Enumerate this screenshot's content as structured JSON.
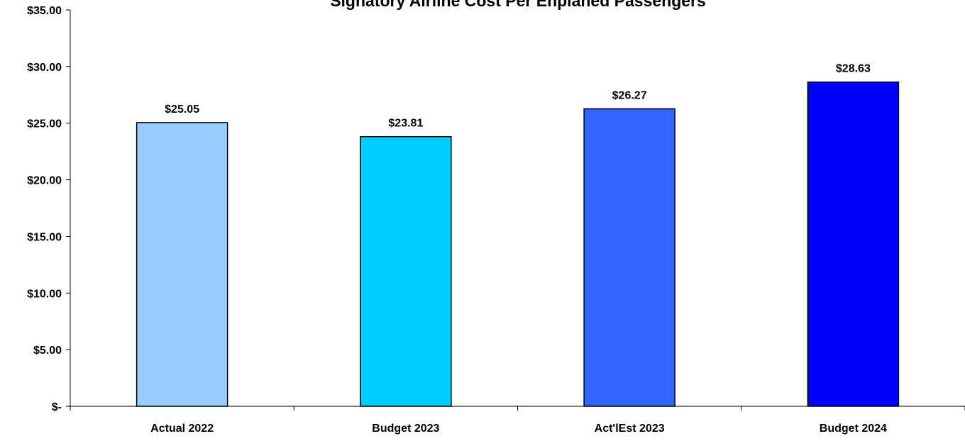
{
  "chart_data": {
    "type": "bar",
    "title": "Signatory Airline Cost Per Enplaned Passengers",
    "xlabel": "",
    "ylabel": "",
    "categories": [
      "Actual 2022",
      "Budget 2023",
      "Act'lEst 2023",
      "Budget 2024"
    ],
    "values": [
      25.05,
      23.81,
      26.27,
      28.63
    ],
    "data_labels": [
      "$25.05",
      "$23.81",
      "$26.27",
      "$28.63"
    ],
    "bar_colors": [
      "#99CCFF",
      "#00CCFF",
      "#3366FF",
      "#0000FF"
    ],
    "ylim": [
      0,
      35
    ],
    "yticks": [
      0,
      5,
      10,
      15,
      20,
      25,
      30,
      35
    ],
    "ytick_labels": [
      "$-",
      "$5.00",
      "$10.00",
      "$15.00",
      "$20.00",
      "$25.00",
      "$30.00",
      "$35.00"
    ],
    "grid": false,
    "legend": "none"
  }
}
